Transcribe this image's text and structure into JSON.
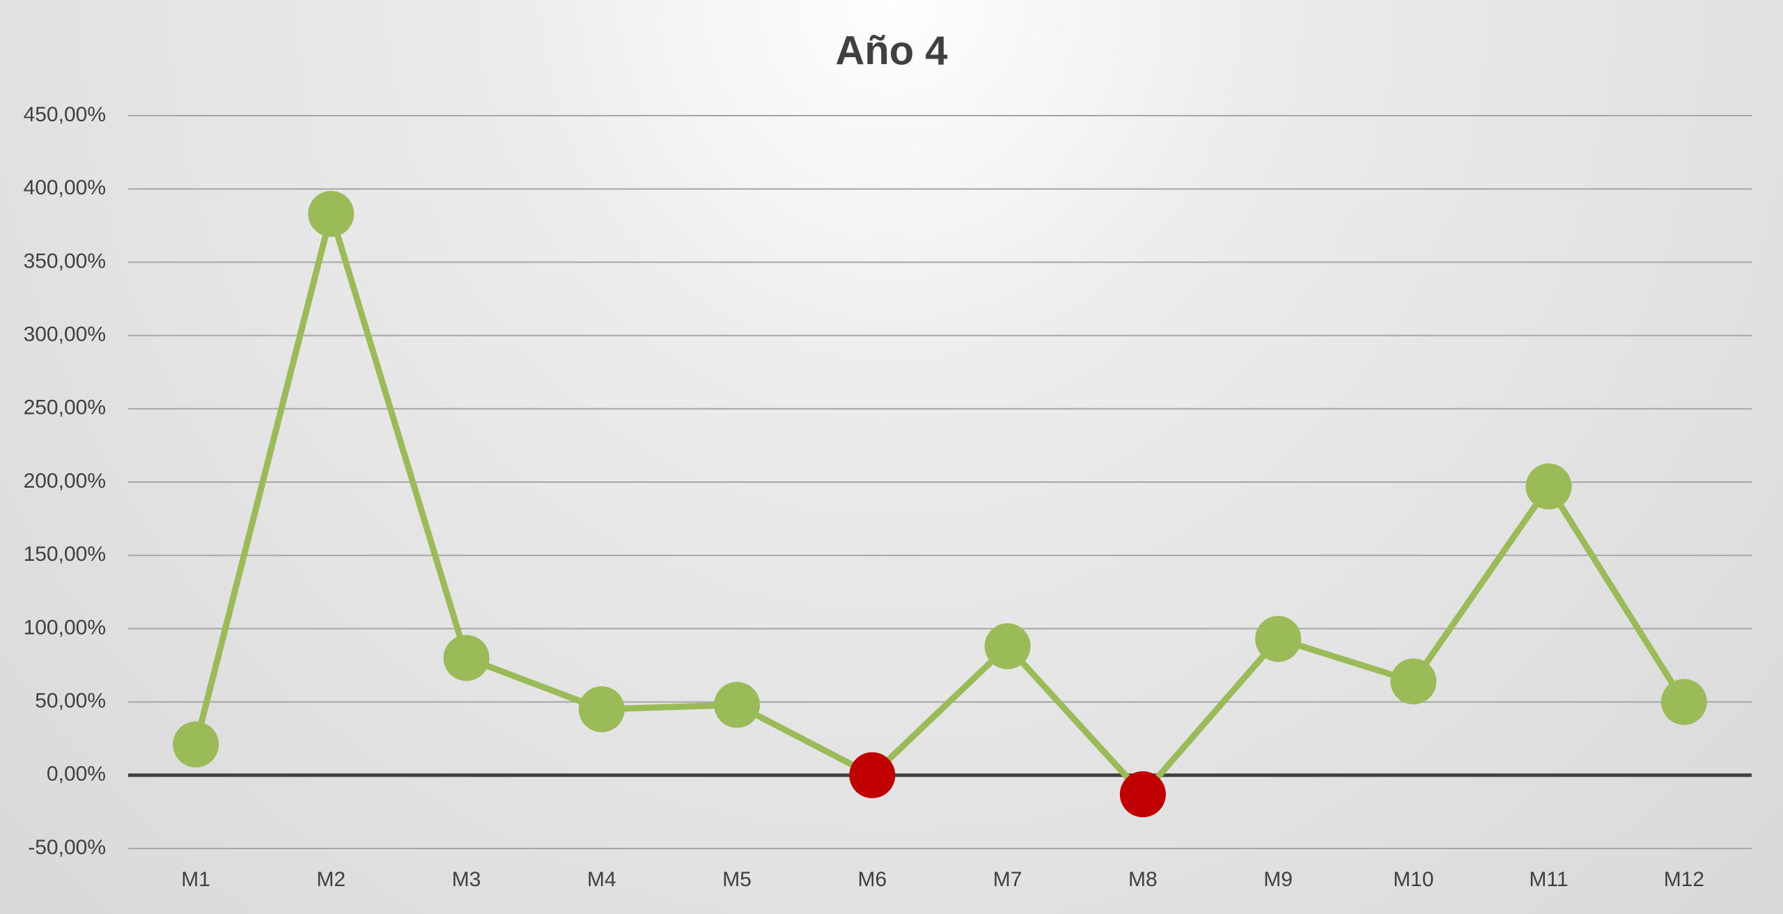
{
  "chart_data": {
    "type": "line",
    "title": "Año 4",
    "categories": [
      "M1",
      "M2",
      "M3",
      "M4",
      "M5",
      "M6",
      "M7",
      "M8",
      "M9",
      "M10",
      "M11",
      "M12"
    ],
    "series": [
      {
        "color": "#9bbb59",
        "values": [
          21,
          383,
          80,
          45,
          48,
          0,
          88,
          -13,
          93,
          64,
          197,
          50
        ],
        "point_colors": [
          "#9bbb59",
          "#9bbb59",
          "#9bbb59",
          "#9bbb59",
          "#9bbb59",
          "#c00000",
          "#9bbb59",
          "#c00000",
          "#9bbb59",
          "#9bbb59",
          "#9bbb59",
          "#9bbb59"
        ]
      }
    ],
    "ylim": [
      -50,
      450
    ],
    "yticks": [
      {
        "value": -50,
        "label": "-50,00%"
      },
      {
        "value": 0,
        "label": "0,00%"
      },
      {
        "value": 50,
        "label": "50,00%"
      },
      {
        "value": 100,
        "label": "100,00%"
      },
      {
        "value": 150,
        "label": "150,00%"
      },
      {
        "value": 200,
        "label": "200,00%"
      },
      {
        "value": 250,
        "label": "250,00%"
      },
      {
        "value": 300,
        "label": "300,00%"
      },
      {
        "value": 350,
        "label": "350,00%"
      },
      {
        "value": 400,
        "label": "400,00%"
      },
      {
        "value": 450,
        "label": "450,00%"
      }
    ],
    "grid": true
  }
}
